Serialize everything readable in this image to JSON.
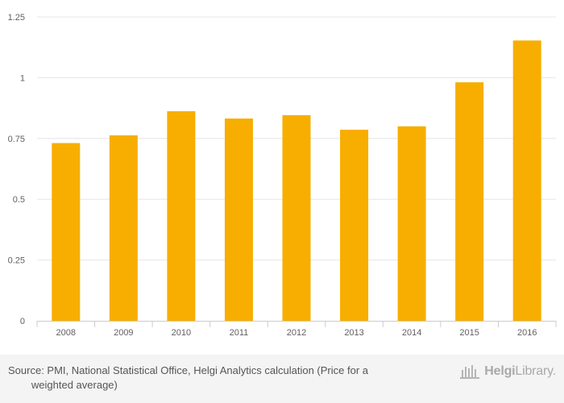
{
  "chart_data": {
    "type": "bar",
    "categories": [
      "2008",
      "2009",
      "2010",
      "2011",
      "2012",
      "2013",
      "2014",
      "2015",
      "2016"
    ],
    "values": [
      0.731,
      0.763,
      0.862,
      0.832,
      0.846,
      0.786,
      0.8,
      0.981,
      1.153
    ],
    "ylim": [
      0,
      1.25
    ],
    "yticks": [
      "0",
      "0.25",
      "0.5",
      "0.75",
      "1",
      "1.25"
    ],
    "title": "",
    "xlabel": "",
    "ylabel": "",
    "grid": true,
    "bar_color": "#f7ae00"
  },
  "footer": {
    "source": "Source: PMI, National Statistical Office, Helgi Analytics calculation (Price for a\n        weighted average)"
  },
  "logo": {
    "part1": "Helgi",
    "part2": "Library."
  }
}
